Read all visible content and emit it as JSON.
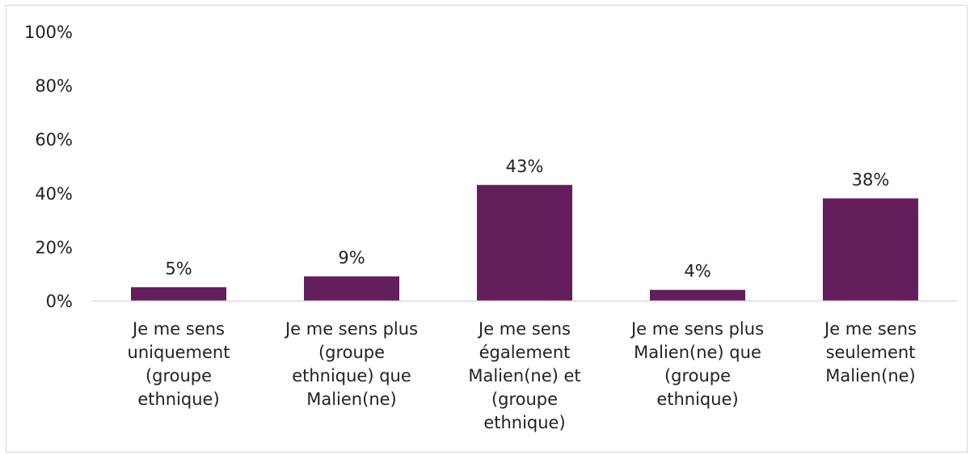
{
  "chart_data": {
    "type": "bar",
    "title": "",
    "xlabel": "",
    "ylabel": "",
    "ylim": [
      0,
      100
    ],
    "y_ticks": [
      "0%",
      "20%",
      "40%",
      "60%",
      "80%",
      "100%"
    ],
    "y_tick_values": [
      0,
      20,
      40,
      60,
      80,
      100
    ],
    "grid": false,
    "legend": "none",
    "bar_color": "#631e5b",
    "categories": [
      [
        "Je me sens",
        "uniquement",
        "(groupe",
        "ethnique)"
      ],
      [
        "Je me sens plus",
        "(groupe",
        "ethnique) que",
        "Malien(ne)"
      ],
      [
        "Je me sens",
        "également",
        "Malien(ne) et",
        "(groupe",
        "ethnique)"
      ],
      [
        "Je me sens plus",
        "Malien(ne) que",
        "(groupe",
        "ethnique)"
      ],
      [
        "Je me sens",
        "seulement",
        "Malien(ne)"
      ]
    ],
    "values": [
      5,
      9,
      43,
      4,
      38
    ],
    "data_labels": [
      "5%",
      "9%",
      "43%",
      "4%",
      "38%"
    ]
  }
}
